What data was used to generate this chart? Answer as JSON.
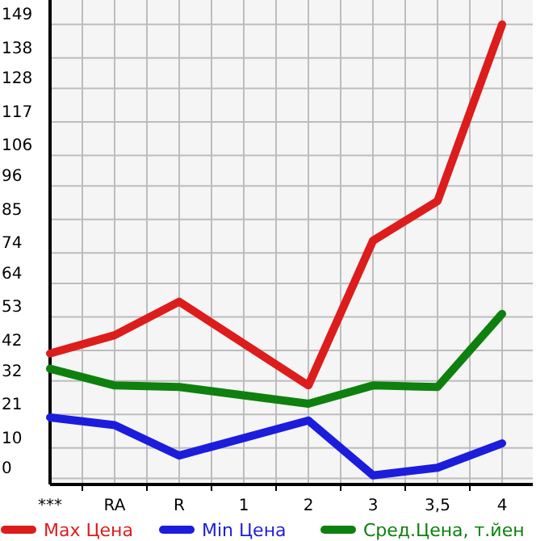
{
  "chart_data": {
    "type": "line",
    "categories": [
      "***",
      "RA",
      "R",
      "1",
      "2",
      "3",
      "3,5",
      "4"
    ],
    "series": [
      {
        "name": "Max Цена",
        "color": "#dd1c1c",
        "values": [
          41,
          47,
          58,
          null,
          30.5,
          78,
          91,
          149
        ]
      },
      {
        "name": "Min Цена",
        "color": "#1c1cdd",
        "values": [
          20,
          17.5,
          7.5,
          null,
          19,
          1,
          3.5,
          11.5
        ]
      },
      {
        "name": "Сред.Цена, т.йен",
        "color": "#0e800e",
        "values": [
          36,
          30.5,
          30,
          null,
          24.5,
          30.5,
          30,
          54
        ]
      }
    ],
    "ylim": [
      -2,
      157
    ],
    "yticks": [
      0,
      10,
      21,
      32,
      42,
      53,
      64,
      74,
      85,
      96,
      106,
      117,
      128,
      138,
      149
    ],
    "grid": true,
    "legend": "bottom",
    "marker": "none",
    "line_style": "solid"
  }
}
